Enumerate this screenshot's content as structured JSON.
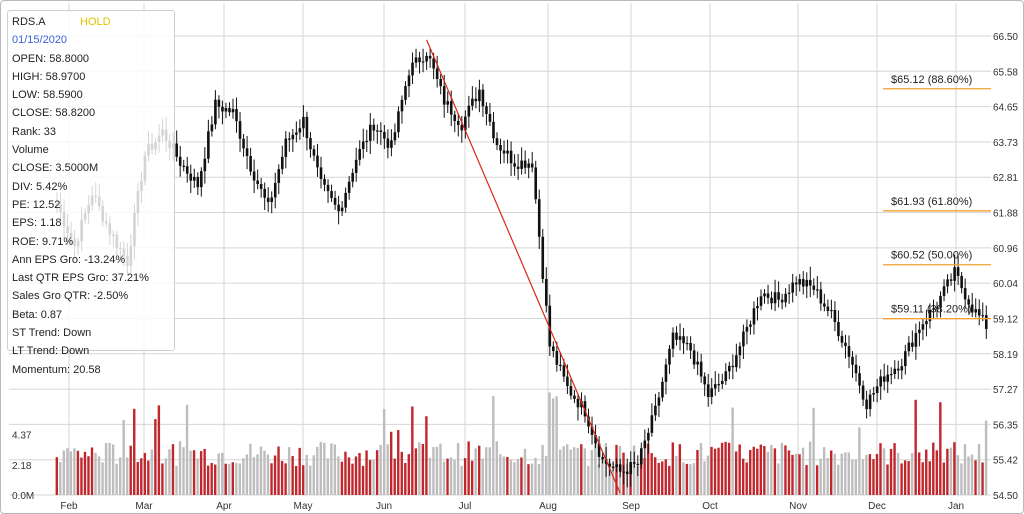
{
  "info": {
    "symbol": "RDS.A",
    "rating": "HOLD",
    "date": "01/15/2020",
    "rows": [
      "OPEN: 58.8000",
      "HIGH: 58.9700",
      "LOW: 58.5900",
      "CLOSE: 58.8200",
      "Rank: 33",
      "Volume",
      "CLOSE: 3.5000M",
      "DIV: 5.42%",
      "PE: 12.52",
      "EPS: 1.18",
      "ROE: 9.71%",
      "Ann EPS Gro: -13.24%",
      "Last QTR EPS Gro: 37.21%",
      "Sales Gro QTR: -2.50%",
      "Beta: 0.87",
      "ST Trend: Down",
      "LT Trend: Down",
      "Momentum: 20.58"
    ]
  },
  "colors": {
    "up_volume": "#c0272d",
    "down_volume": "#bdbdbd",
    "fib_line": "#f0a030",
    "trend_line": "#d9261c",
    "grid": "#d6d6d6",
    "axis_text": "#333333"
  },
  "chart_data": {
    "type": "candlestick",
    "title": "",
    "x_tick_labels": [
      "Feb",
      "Mar",
      "Apr",
      "May",
      "Jun",
      "Jul",
      "Aug",
      "Sep",
      "Oct",
      "Nov",
      "Dec",
      "Jan"
    ],
    "y_axis_right": {
      "ticks": [
        "66.50",
        "65.58",
        "64.65",
        "63.73",
        "62.81",
        "61.88",
        "60.96",
        "60.04",
        "59.12",
        "58.19",
        "57.27",
        "56.35",
        "55.42",
        "54.50"
      ],
      "range": [
        54.5,
        66.5
      ]
    },
    "y_axis_left_volume": {
      "ticks": [
        "4.37",
        "2.18",
        "0.0M"
      ],
      "range_millions": [
        0,
        8.6
      ]
    },
    "price_weekly": [
      {
        "week": 0,
        "close": 62.1
      },
      {
        "week": 1,
        "close": 61.0
      },
      {
        "week": 2,
        "close": 62.4
      },
      {
        "week": 3,
        "close": 61.4
      },
      {
        "week": 4,
        "close": 60.6
      },
      {
        "week": 5,
        "close": 63.4
      },
      {
        "week": 6,
        "close": 64.0
      },
      {
        "week": 7,
        "close": 63.2
      },
      {
        "week": 8,
        "close": 62.6
      },
      {
        "week": 9,
        "close": 64.7
      },
      {
        "week": 10,
        "close": 64.5
      },
      {
        "week": 11,
        "close": 63.1
      },
      {
        "week": 12,
        "close": 62.0
      },
      {
        "week": 13,
        "close": 63.7
      },
      {
        "week": 14,
        "close": 64.3
      },
      {
        "week": 15,
        "close": 62.6
      },
      {
        "week": 16,
        "close": 61.9
      },
      {
        "week": 17,
        "close": 63.3
      },
      {
        "week": 18,
        "close": 64.2
      },
      {
        "week": 19,
        "close": 63.6
      },
      {
        "week": 20,
        "close": 65.6
      },
      {
        "week": 21,
        "close": 66.1
      },
      {
        "week": 22,
        "close": 64.8
      },
      {
        "week": 23,
        "close": 64.2
      },
      {
        "week": 24,
        "close": 65.1
      },
      {
        "week": 25,
        "close": 63.7
      },
      {
        "week": 26,
        "close": 63.2
      },
      {
        "week": 27,
        "close": 63.2
      },
      {
        "week": 28,
        "close": 58.4
      },
      {
        "week": 29,
        "close": 57.3
      },
      {
        "week": 30,
        "close": 56.7
      },
      {
        "week": 31,
        "close": 55.4
      },
      {
        "week": 32,
        "close": 55.1
      },
      {
        "week": 33,
        "close": 55.3
      },
      {
        "week": 34,
        "close": 56.7
      },
      {
        "week": 35,
        "close": 58.6
      },
      {
        "week": 36,
        "close": 58.3
      },
      {
        "week": 37,
        "close": 57.1
      },
      {
        "week": 38,
        "close": 57.6
      },
      {
        "week": 39,
        "close": 58.6
      },
      {
        "week": 40,
        "close": 59.8
      },
      {
        "week": 41,
        "close": 59.6
      },
      {
        "week": 42,
        "close": 60.1
      },
      {
        "week": 43,
        "close": 59.9
      },
      {
        "week": 44,
        "close": 59.2
      },
      {
        "week": 45,
        "close": 58.2
      },
      {
        "week": 46,
        "close": 56.9
      },
      {
        "week": 47,
        "close": 57.6
      },
      {
        "week": 48,
        "close": 58.0
      },
      {
        "week": 49,
        "close": 58.9
      },
      {
        "week": 50,
        "close": 59.5
      },
      {
        "week": 51,
        "close": 60.3
      },
      {
        "week": 52,
        "close": 59.4
      },
      {
        "week": 53,
        "close": 58.8
      }
    ],
    "trend_line": {
      "start": {
        "week": 21,
        "price": 66.4
      },
      "end": {
        "week": 32,
        "price": 54.55
      }
    },
    "fibonacci_levels": [
      {
        "label": "$65.12 (88.60%)",
        "price": 65.12
      },
      {
        "label": "$61.93 (61.80%)",
        "price": 61.93
      },
      {
        "label": "$60.52 (50.00%)",
        "price": 60.52
      },
      {
        "label": "$59.11 (38.20%)",
        "price": 59.11
      }
    ],
    "grid": true
  }
}
